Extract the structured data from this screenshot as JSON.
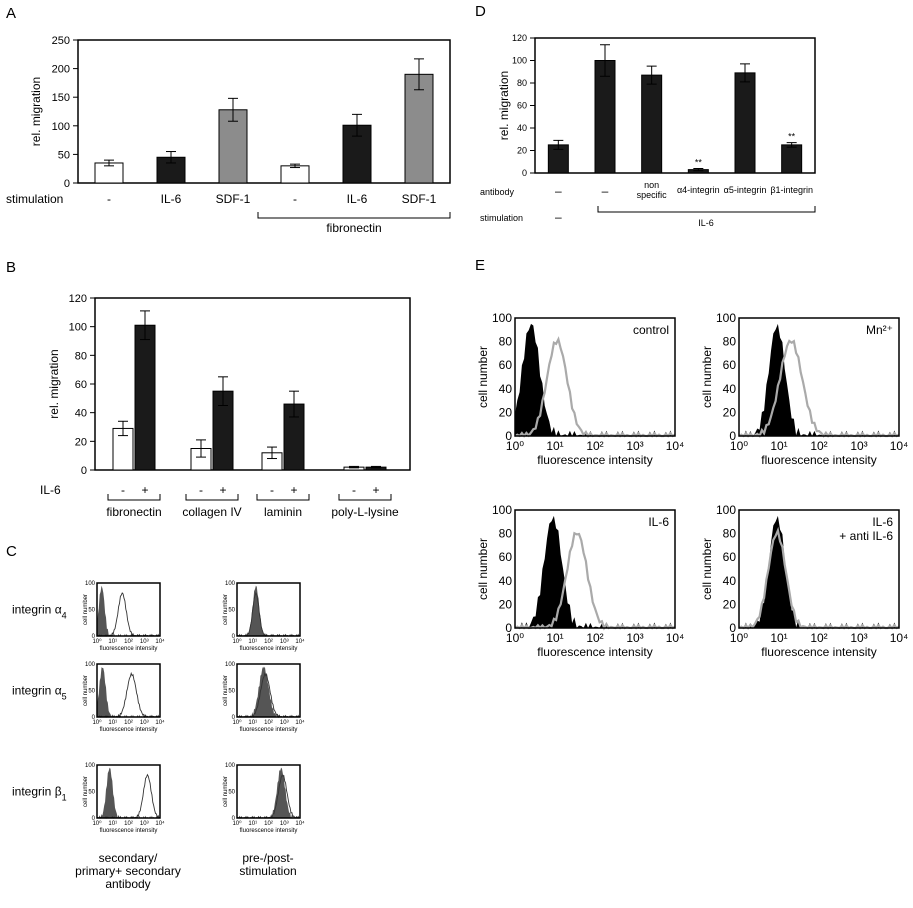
{
  "panels": {
    "A": {
      "letter": "A",
      "ylabel": "rel. migration",
      "yticks": [
        "0",
        "50",
        "100",
        "150",
        "200",
        "250"
      ],
      "ylim": [
        0,
        250
      ],
      "row_label": "stimulation",
      "categories": [
        "-",
        "IL-6",
        "SDF-1",
        "-",
        "IL-6",
        "SDF-1"
      ],
      "bracket_label": "fibronectin",
      "bars": [
        {
          "value": 35,
          "err": 5,
          "fill": "#ffffff"
        },
        {
          "value": 45,
          "err": 10,
          "fill": "#1a1a1a"
        },
        {
          "value": 128,
          "err": 20,
          "fill": "#8c8c8c"
        },
        {
          "value": 30,
          "err": 3,
          "fill": "#ffffff"
        },
        {
          "value": 101,
          "err": 19,
          "fill": "#1a1a1a"
        },
        {
          "value": 190,
          "err": 27,
          "fill": "#8c8c8c"
        }
      ]
    },
    "B": {
      "letter": "B",
      "ylabel": "rel. migration",
      "yticks": [
        "0",
        "20",
        "40",
        "60",
        "80",
        "100",
        "120"
      ],
      "ylim": [
        0,
        120
      ],
      "row_label": "IL-6",
      "pair_labels": [
        "-",
        "+"
      ],
      "groups": [
        {
          "label": "fibronectin",
          "minus": 29,
          "minus_err": 5,
          "plus": 101,
          "plus_err": 10
        },
        {
          "label": "collagen IV",
          "minus": 15,
          "minus_err": 6,
          "plus": 55,
          "plus_err": 10
        },
        {
          "label": "laminin",
          "minus": 12,
          "minus_err": 4,
          "plus": 46,
          "plus_err": 9
        },
        {
          "label": "poly-L-lysine",
          "minus": 2,
          "minus_err": 0.5,
          "plus": 2,
          "plus_err": 0.5
        }
      ]
    },
    "C": {
      "letter": "C",
      "rows": [
        {
          "label_main": "integrin α",
          "label_sub": "4"
        },
        {
          "label_main": "integrin α",
          "label_sub": "5"
        },
        {
          "label_main": "integrin β",
          "label_sub": "1"
        }
      ],
      "ylabel": "cell number",
      "xlabel": "fluorescence intensity",
      "yticks": [
        "0",
        "50",
        "100"
      ],
      "xticks": [
        "10⁰",
        "10¹",
        "10²",
        "10³",
        "10⁴"
      ],
      "col1_caption": [
        "secondary/",
        "primary+ secondary",
        "antibody"
      ],
      "col2_caption": [
        "pre-/post-",
        "stimulation"
      ]
    },
    "D": {
      "letter": "D",
      "ylabel": "rel. migration",
      "yticks": [
        "0",
        "20",
        "40",
        "60",
        "80",
        "100",
        "120"
      ],
      "ylim": [
        0,
        120
      ],
      "antibody_label": "antibody",
      "stimulation_label": "stimulation",
      "bracket_label": "IL-6",
      "significance": "**",
      "categories": [
        {
          "text": "–"
        },
        {
          "text": "–"
        },
        {
          "text": "non specific"
        },
        {
          "text": "α4-integrin"
        },
        {
          "text": "α5-integrin"
        },
        {
          "text": "β1-integrin"
        }
      ],
      "stim_first": "–",
      "bars": [
        {
          "value": 25,
          "err": 4,
          "sig": false
        },
        {
          "value": 100,
          "err": 14,
          "sig": false
        },
        {
          "value": 87,
          "err": 8,
          "sig": false
        },
        {
          "value": 3,
          "err": 1,
          "sig": true
        },
        {
          "value": 89,
          "err": 8,
          "sig": false
        },
        {
          "value": 25,
          "err": 2,
          "sig": true
        }
      ]
    },
    "E": {
      "letter": "E",
      "ylabel": "cell number",
      "xlabel": "fluorescence intensity",
      "yticks": [
        "0",
        "20",
        "40",
        "60",
        "80",
        "100"
      ],
      "xticks": [
        "10⁰",
        "10¹",
        "10²",
        "10³",
        "10⁴"
      ],
      "plots": [
        {
          "annotation": "control",
          "note": "",
          "filled_peak": 0.4,
          "filled_width": 0.22,
          "line_peak": 1.05,
          "line_width": 0.25
        },
        {
          "annotation": "Mn²⁺",
          "note": "",
          "filled_peak": 0.95,
          "filled_width": 0.2,
          "line_peak": 1.3,
          "line_width": 0.28
        },
        {
          "annotation": "IL-6",
          "note": "",
          "filled_peak": 0.95,
          "filled_width": 0.22,
          "line_peak": 1.55,
          "line_width": 0.25
        },
        {
          "annotation": "IL-6",
          "note": "+ anti IL-6",
          "filled_peak": 0.95,
          "filled_width": 0.2,
          "line_peak": 0.95,
          "line_width": 0.22
        }
      ]
    }
  }
}
